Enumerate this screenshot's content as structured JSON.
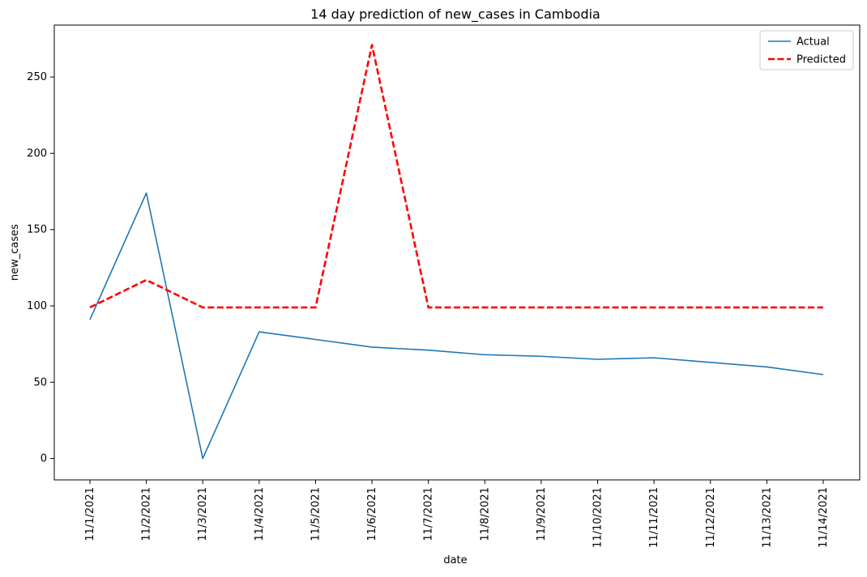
{
  "chart_data": {
    "type": "line",
    "title": "14 day prediction of new_cases in Cambodia",
    "xlabel": "date",
    "ylabel": "new_cases",
    "categories": [
      "11/1/2021",
      "11/2/2021",
      "11/3/2021",
      "11/4/2021",
      "11/5/2021",
      "11/6/2021",
      "11/7/2021",
      "11/8/2021",
      "11/9/2021",
      "11/10/2021",
      "11/11/2021",
      "11/12/2021",
      "11/13/2021",
      "11/14/2021"
    ],
    "series": [
      {
        "name": "Actual",
        "color": "#1f77b4",
        "style": "solid",
        "values": [
          91,
          174,
          0,
          83,
          78,
          73,
          71,
          68,
          67,
          65,
          66,
          63,
          60,
          55
        ]
      },
      {
        "name": "Predicted",
        "color": "#ff0000",
        "style": "dashed",
        "values": [
          99,
          117,
          99,
          99,
          99,
          271,
          99,
          99,
          99,
          99,
          99,
          99,
          99,
          99
        ]
      }
    ],
    "ylim": [
      -14,
      284
    ],
    "yticks": [
      0,
      50,
      100,
      150,
      200,
      250
    ],
    "grid": false,
    "legend_position": "top-right"
  }
}
